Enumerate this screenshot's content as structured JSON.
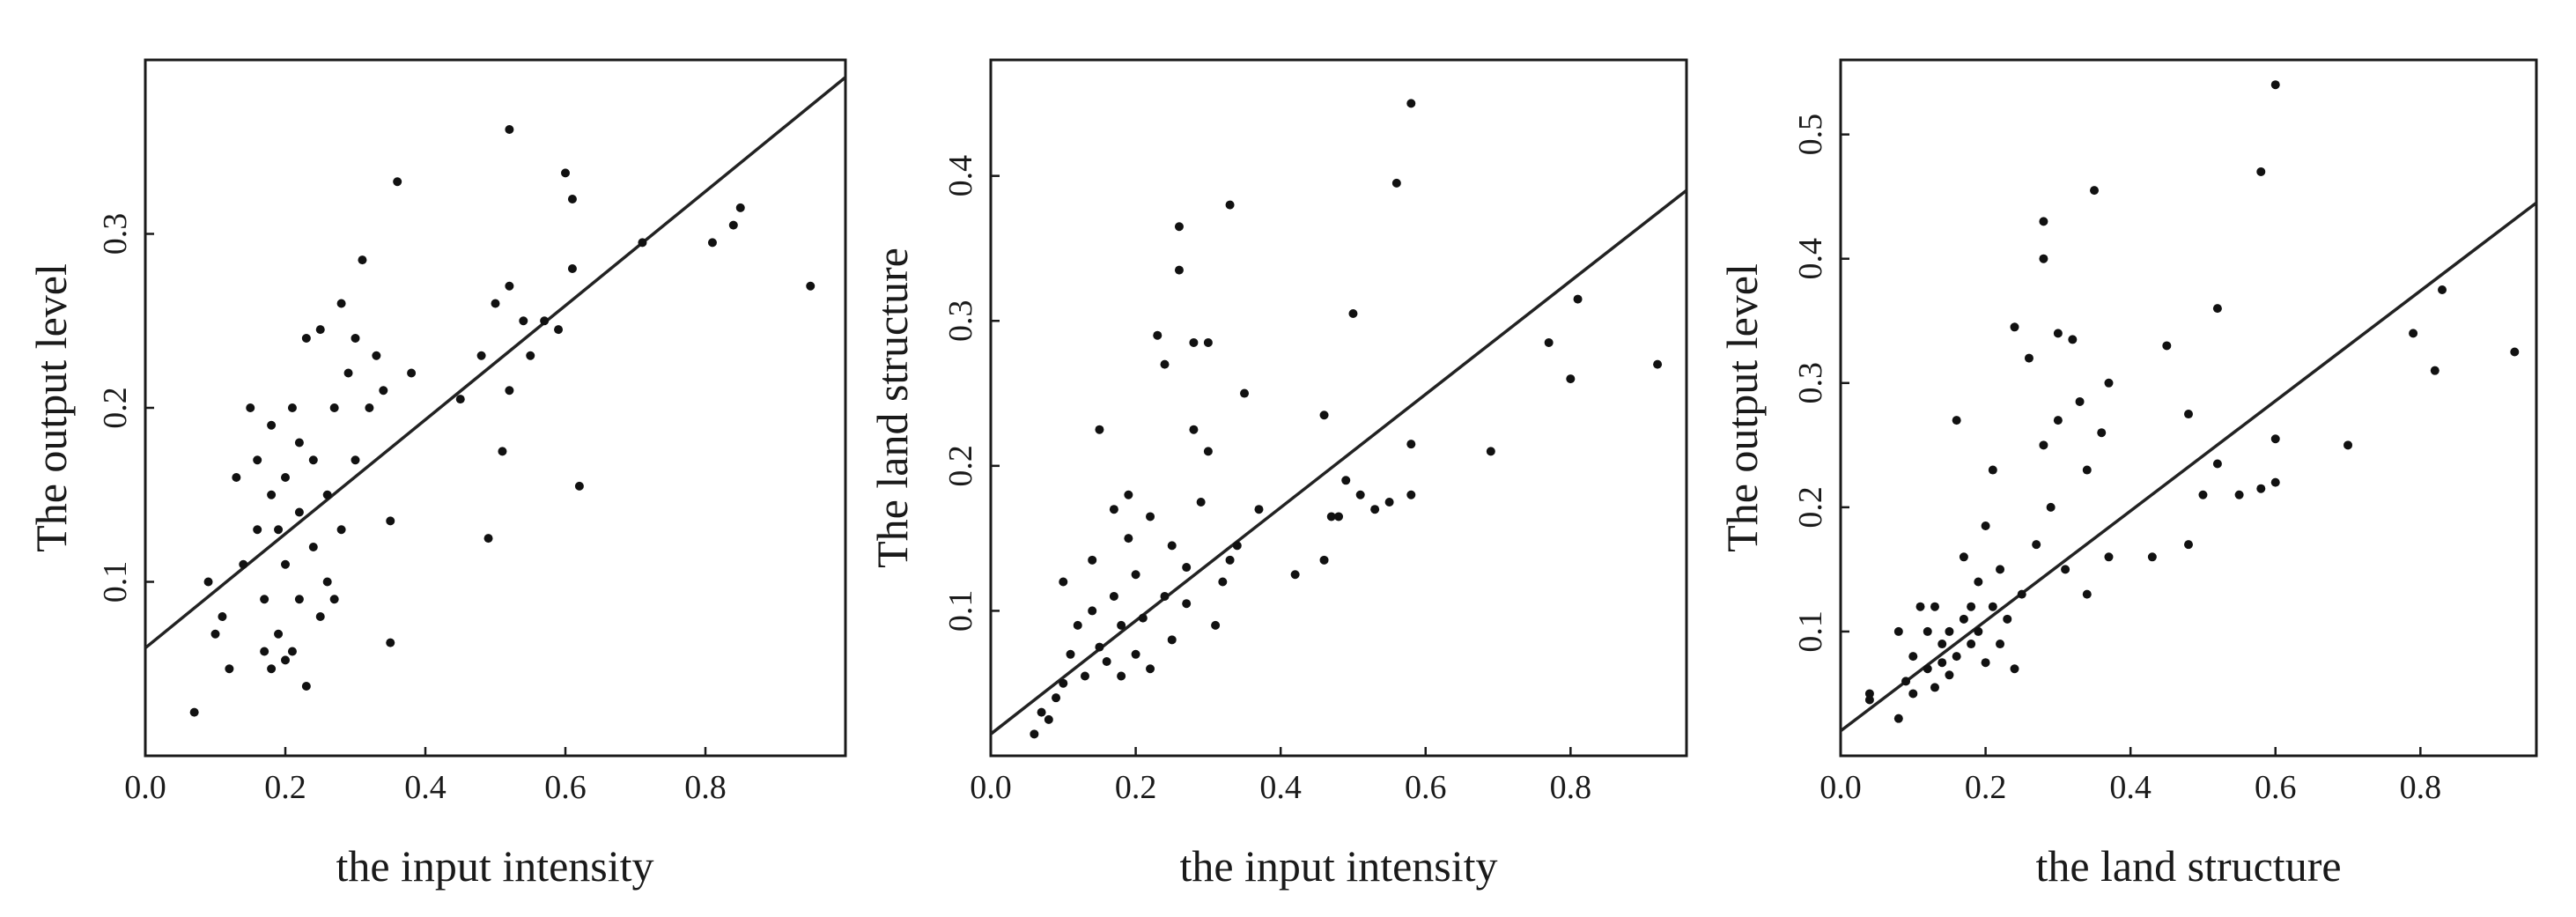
{
  "chart_data": [
    {
      "type": "scatter",
      "xlabel": "the input intensity",
      "ylabel": "The output level",
      "xlim": [
        0,
        1
      ],
      "ylim": [
        0,
        0.4
      ],
      "xticks": [
        "0.0",
        "0.2",
        "0.4",
        "0.6",
        "0.8"
      ],
      "yticks": [
        "0.1",
        "0.2",
        "0.3"
      ],
      "grid": false,
      "fit_line": {
        "x": [
          0,
          1
        ],
        "y": [
          0.062,
          0.39
        ]
      },
      "points": [
        [
          0.07,
          0.025
        ],
        [
          0.1,
          0.07
        ],
        [
          0.12,
          0.05
        ],
        [
          0.09,
          0.1
        ],
        [
          0.11,
          0.08
        ],
        [
          0.13,
          0.16
        ],
        [
          0.14,
          0.11
        ],
        [
          0.15,
          0.2
        ],
        [
          0.16,
          0.13
        ],
        [
          0.16,
          0.17
        ],
        [
          0.17,
          0.06
        ],
        [
          0.17,
          0.09
        ],
        [
          0.18,
          0.05
        ],
        [
          0.18,
          0.15
        ],
        [
          0.18,
          0.19
        ],
        [
          0.19,
          0.07
        ],
        [
          0.19,
          0.13
        ],
        [
          0.2,
          0.055
        ],
        [
          0.2,
          0.11
        ],
        [
          0.2,
          0.16
        ],
        [
          0.21,
          0.2
        ],
        [
          0.21,
          0.06
        ],
        [
          0.22,
          0.09
        ],
        [
          0.22,
          0.14
        ],
        [
          0.22,
          0.18
        ],
        [
          0.23,
          0.04
        ],
        [
          0.23,
          0.24
        ],
        [
          0.24,
          0.12
        ],
        [
          0.24,
          0.17
        ],
        [
          0.25,
          0.245
        ],
        [
          0.25,
          0.08
        ],
        [
          0.26,
          0.1
        ],
        [
          0.26,
          0.15
        ],
        [
          0.27,
          0.2
        ],
        [
          0.27,
          0.09
        ],
        [
          0.28,
          0.26
        ],
        [
          0.28,
          0.13
        ],
        [
          0.29,
          0.22
        ],
        [
          0.3,
          0.17
        ],
        [
          0.3,
          0.24
        ],
        [
          0.31,
          0.285
        ],
        [
          0.32,
          0.2
        ],
        [
          0.33,
          0.23
        ],
        [
          0.34,
          0.21
        ],
        [
          0.35,
          0.135
        ],
        [
          0.35,
          0.065
        ],
        [
          0.36,
          0.33
        ],
        [
          0.38,
          0.22
        ],
        [
          0.45,
          0.205
        ],
        [
          0.48,
          0.23
        ],
        [
          0.49,
          0.125
        ],
        [
          0.5,
          0.26
        ],
        [
          0.51,
          0.175
        ],
        [
          0.52,
          0.21
        ],
        [
          0.52,
          0.27
        ],
        [
          0.52,
          0.36
        ],
        [
          0.54,
          0.25
        ],
        [
          0.55,
          0.23
        ],
        [
          0.57,
          0.25
        ],
        [
          0.59,
          0.245
        ],
        [
          0.6,
          0.335
        ],
        [
          0.61,
          0.32
        ],
        [
          0.61,
          0.28
        ],
        [
          0.62,
          0.155
        ],
        [
          0.71,
          0.295
        ],
        [
          0.81,
          0.295
        ],
        [
          0.84,
          0.305
        ],
        [
          0.85,
          0.315
        ],
        [
          0.95,
          0.27
        ]
      ]
    },
    {
      "type": "scatter",
      "xlabel": "the input intensity",
      "ylabel": "The land structure",
      "xlim": [
        0,
        0.96
      ],
      "ylim": [
        0,
        0.48
      ],
      "xticks": [
        "0.0",
        "0.2",
        "0.4",
        "0.6",
        "0.8"
      ],
      "yticks": [
        "0.1",
        "0.2",
        "0.3",
        "0.4"
      ],
      "grid": false,
      "fit_line": {
        "x": [
          0,
          0.96
        ],
        "y": [
          0.015,
          0.39
        ]
      },
      "points": [
        [
          0.06,
          0.015
        ],
        [
          0.07,
          0.03
        ],
        [
          0.08,
          0.025
        ],
        [
          0.09,
          0.04
        ],
        [
          0.1,
          0.05
        ],
        [
          0.1,
          0.12
        ],
        [
          0.11,
          0.07
        ],
        [
          0.12,
          0.09
        ],
        [
          0.13,
          0.055
        ],
        [
          0.14,
          0.1
        ],
        [
          0.14,
          0.135
        ],
        [
          0.15,
          0.075
        ],
        [
          0.15,
          0.225
        ],
        [
          0.16,
          0.065
        ],
        [
          0.17,
          0.11
        ],
        [
          0.17,
          0.17
        ],
        [
          0.18,
          0.055
        ],
        [
          0.18,
          0.09
        ],
        [
          0.19,
          0.15
        ],
        [
          0.19,
          0.18
        ],
        [
          0.2,
          0.07
        ],
        [
          0.2,
          0.125
        ],
        [
          0.21,
          0.095
        ],
        [
          0.22,
          0.165
        ],
        [
          0.22,
          0.06
        ],
        [
          0.23,
          0.29
        ],
        [
          0.24,
          0.11
        ],
        [
          0.24,
          0.27
        ],
        [
          0.25,
          0.08
        ],
        [
          0.25,
          0.145
        ],
        [
          0.26,
          0.335
        ],
        [
          0.26,
          0.365
        ],
        [
          0.27,
          0.105
        ],
        [
          0.27,
          0.13
        ],
        [
          0.28,
          0.285
        ],
        [
          0.28,
          0.225
        ],
        [
          0.29,
          0.175
        ],
        [
          0.3,
          0.21
        ],
        [
          0.3,
          0.285
        ],
        [
          0.31,
          0.09
        ],
        [
          0.32,
          0.12
        ],
        [
          0.33,
          0.135
        ],
        [
          0.33,
          0.38
        ],
        [
          0.34,
          0.145
        ],
        [
          0.35,
          0.25
        ],
        [
          0.37,
          0.17
        ],
        [
          0.42,
          0.125
        ],
        [
          0.46,
          0.135
        ],
        [
          0.46,
          0.235
        ],
        [
          0.47,
          0.165
        ],
        [
          0.48,
          0.165
        ],
        [
          0.49,
          0.19
        ],
        [
          0.5,
          0.305
        ],
        [
          0.51,
          0.18
        ],
        [
          0.53,
          0.17
        ],
        [
          0.55,
          0.175
        ],
        [
          0.56,
          0.395
        ],
        [
          0.58,
          0.215
        ],
        [
          0.58,
          0.45
        ],
        [
          0.58,
          0.18
        ],
        [
          0.69,
          0.21
        ],
        [
          0.77,
          0.285
        ],
        [
          0.8,
          0.26
        ],
        [
          0.81,
          0.315
        ],
        [
          0.92,
          0.27
        ]
      ]
    },
    {
      "type": "scatter",
      "xlabel": "the land structure",
      "ylabel": "The output level",
      "xlim": [
        0,
        0.96
      ],
      "ylim": [
        0,
        0.56
      ],
      "xticks": [
        "0.0",
        "0.2",
        "0.4",
        "0.6",
        "0.8"
      ],
      "yticks": [
        "0.1",
        "0.2",
        "0.3",
        "0.4",
        "0.5"
      ],
      "grid": false,
      "fit_line": {
        "x": [
          0,
          0.96
        ],
        "y": [
          0.02,
          0.445
        ]
      },
      "points": [
        [
          0.04,
          0.045
        ],
        [
          0.04,
          0.05
        ],
        [
          0.08,
          0.03
        ],
        [
          0.08,
          0.1
        ],
        [
          0.09,
          0.06
        ],
        [
          0.1,
          0.05
        ],
        [
          0.1,
          0.08
        ],
        [
          0.11,
          0.12
        ],
        [
          0.12,
          0.07
        ],
        [
          0.12,
          0.1
        ],
        [
          0.13,
          0.055
        ],
        [
          0.13,
          0.12
        ],
        [
          0.14,
          0.075
        ],
        [
          0.14,
          0.09
        ],
        [
          0.15,
          0.065
        ],
        [
          0.15,
          0.1
        ],
        [
          0.16,
          0.08
        ],
        [
          0.16,
          0.27
        ],
        [
          0.17,
          0.11
        ],
        [
          0.17,
          0.16
        ],
        [
          0.18,
          0.09
        ],
        [
          0.18,
          0.12
        ],
        [
          0.19,
          0.1
        ],
        [
          0.19,
          0.14
        ],
        [
          0.2,
          0.075
        ],
        [
          0.2,
          0.185
        ],
        [
          0.21,
          0.12
        ],
        [
          0.21,
          0.23
        ],
        [
          0.22,
          0.09
        ],
        [
          0.22,
          0.15
        ],
        [
          0.23,
          0.11
        ],
        [
          0.24,
          0.345
        ],
        [
          0.24,
          0.07
        ],
        [
          0.25,
          0.13
        ],
        [
          0.26,
          0.32
        ],
        [
          0.27,
          0.17
        ],
        [
          0.28,
          0.43
        ],
        [
          0.28,
          0.4
        ],
        [
          0.28,
          0.25
        ],
        [
          0.29,
          0.2
        ],
        [
          0.3,
          0.34
        ],
        [
          0.3,
          0.27
        ],
        [
          0.31,
          0.15
        ],
        [
          0.32,
          0.335
        ],
        [
          0.33,
          0.285
        ],
        [
          0.34,
          0.13
        ],
        [
          0.34,
          0.23
        ],
        [
          0.35,
          0.455
        ],
        [
          0.36,
          0.26
        ],
        [
          0.37,
          0.3
        ],
        [
          0.37,
          0.16
        ],
        [
          0.43,
          0.16
        ],
        [
          0.45,
          0.33
        ],
        [
          0.48,
          0.17
        ],
        [
          0.48,
          0.275
        ],
        [
          0.5,
          0.21
        ],
        [
          0.52,
          0.235
        ],
        [
          0.52,
          0.36
        ],
        [
          0.55,
          0.21
        ],
        [
          0.58,
          0.215
        ],
        [
          0.58,
          0.47
        ],
        [
          0.6,
          0.22
        ],
        [
          0.6,
          0.255
        ],
        [
          0.6,
          0.54
        ],
        [
          0.7,
          0.25
        ],
        [
          0.79,
          0.34
        ],
        [
          0.82,
          0.31
        ],
        [
          0.83,
          0.375
        ],
        [
          0.93,
          0.325
        ]
      ]
    }
  ]
}
